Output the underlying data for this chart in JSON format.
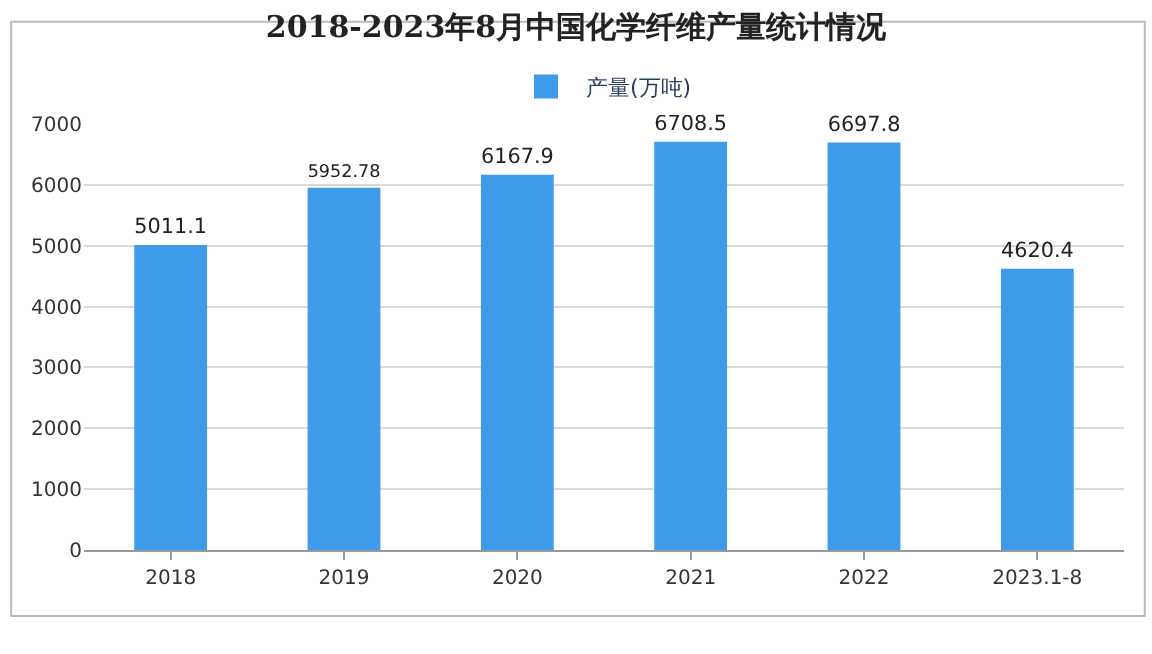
{
  "chart_data": {
    "type": "bar",
    "title": "2018-2023年8月中国化学纤维产量统计情况",
    "categories": [
      "2018",
      "2019",
      "2020",
      "2021",
      "2022",
      "2023.1-8"
    ],
    "series": [
      {
        "name": "产量(万吨)",
        "color": "#3d9be9",
        "values": [
          5011.1,
          5952.78,
          6167.9,
          6708.5,
          6697.8,
          4620.4
        ]
      }
    ],
    "ylim": [
      0,
      7000
    ],
    "yticks": [
      0,
      1000,
      2000,
      3000,
      4000,
      5000,
      6000,
      7000
    ],
    "grid": "y",
    "legend": "top",
    "data_labels": true
  }
}
